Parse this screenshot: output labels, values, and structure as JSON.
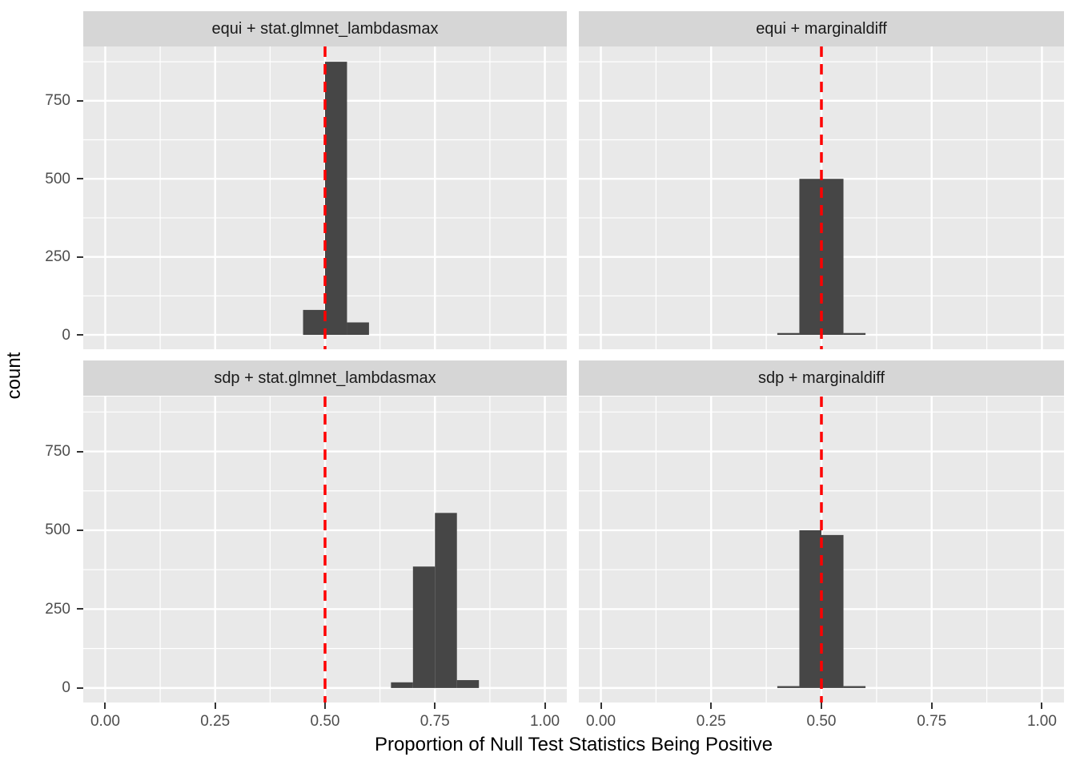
{
  "chart_data": {
    "type": "bar",
    "subtype": "faceted-histogram",
    "title": "",
    "xlabel": "Proportion of Null Test Statistics Being Positive",
    "ylabel": "count",
    "x_tick_values": [
      0,
      0.25,
      0.5,
      0.75,
      1.0
    ],
    "x_tick_labels": [
      "0.00",
      "0.25",
      "0.50",
      "0.75",
      "1.00"
    ],
    "y_tick_values": [
      0,
      250,
      500,
      750
    ],
    "y_tick_labels": [
      "0",
      "250",
      "500",
      "750"
    ],
    "x_minor_values": [
      0.125,
      0.375,
      0.625,
      0.875
    ],
    "y_minor_values": [
      125,
      375,
      625,
      875
    ],
    "x_domain": [
      -0.05,
      1.05
    ],
    "y_domain": [
      -46,
      924
    ],
    "binwidth": 0.05,
    "grid": true,
    "legend": "none",
    "vline": {
      "x": 0.5,
      "style": "dashed"
    },
    "panels": [
      {
        "facet": "equi + stat.glmnet_lambdasmax",
        "bins": [
          {
            "x0": 0.45,
            "x1": 0.5,
            "count": 80
          },
          {
            "x0": 0.5,
            "x1": 0.55,
            "count": 875
          },
          {
            "x0": 0.55,
            "x1": 0.6,
            "count": 40
          }
        ]
      },
      {
        "facet": "equi + marginaldiff",
        "bins": [
          {
            "x0": 0.4,
            "x1": 0.45,
            "count": 6
          },
          {
            "x0": 0.45,
            "x1": 0.5,
            "count": 500
          },
          {
            "x0": 0.5,
            "x1": 0.55,
            "count": 500
          },
          {
            "x0": 0.55,
            "x1": 0.6,
            "count": 6
          }
        ]
      },
      {
        "facet": "sdp + stat.glmnet_lambdasmax",
        "bins": [
          {
            "x0": 0.65,
            "x1": 0.7,
            "count": 18
          },
          {
            "x0": 0.7,
            "x1": 0.75,
            "count": 385
          },
          {
            "x0": 0.75,
            "x1": 0.8,
            "count": 555
          },
          {
            "x0": 0.8,
            "x1": 0.85,
            "count": 25
          }
        ]
      },
      {
        "facet": "sdp + marginaldiff",
        "bins": [
          {
            "x0": 0.4,
            "x1": 0.45,
            "count": 6
          },
          {
            "x0": 0.45,
            "x1": 0.5,
            "count": 500
          },
          {
            "x0": 0.5,
            "x1": 0.55,
            "count": 485
          },
          {
            "x0": 0.55,
            "x1": 0.6,
            "count": 6
          }
        ]
      }
    ],
    "colors": {
      "panel_background": "#E9E9E9",
      "strip_background": "#D6D6D6",
      "strip_text": "#1a1a1a",
      "grid_line": "#FFFFFF",
      "bar_fill": "#464646",
      "vline": "#FF0000",
      "tick_text": "#4D4D4D",
      "axis_title_text": "#000000",
      "tick_mark": "#333333"
    }
  }
}
